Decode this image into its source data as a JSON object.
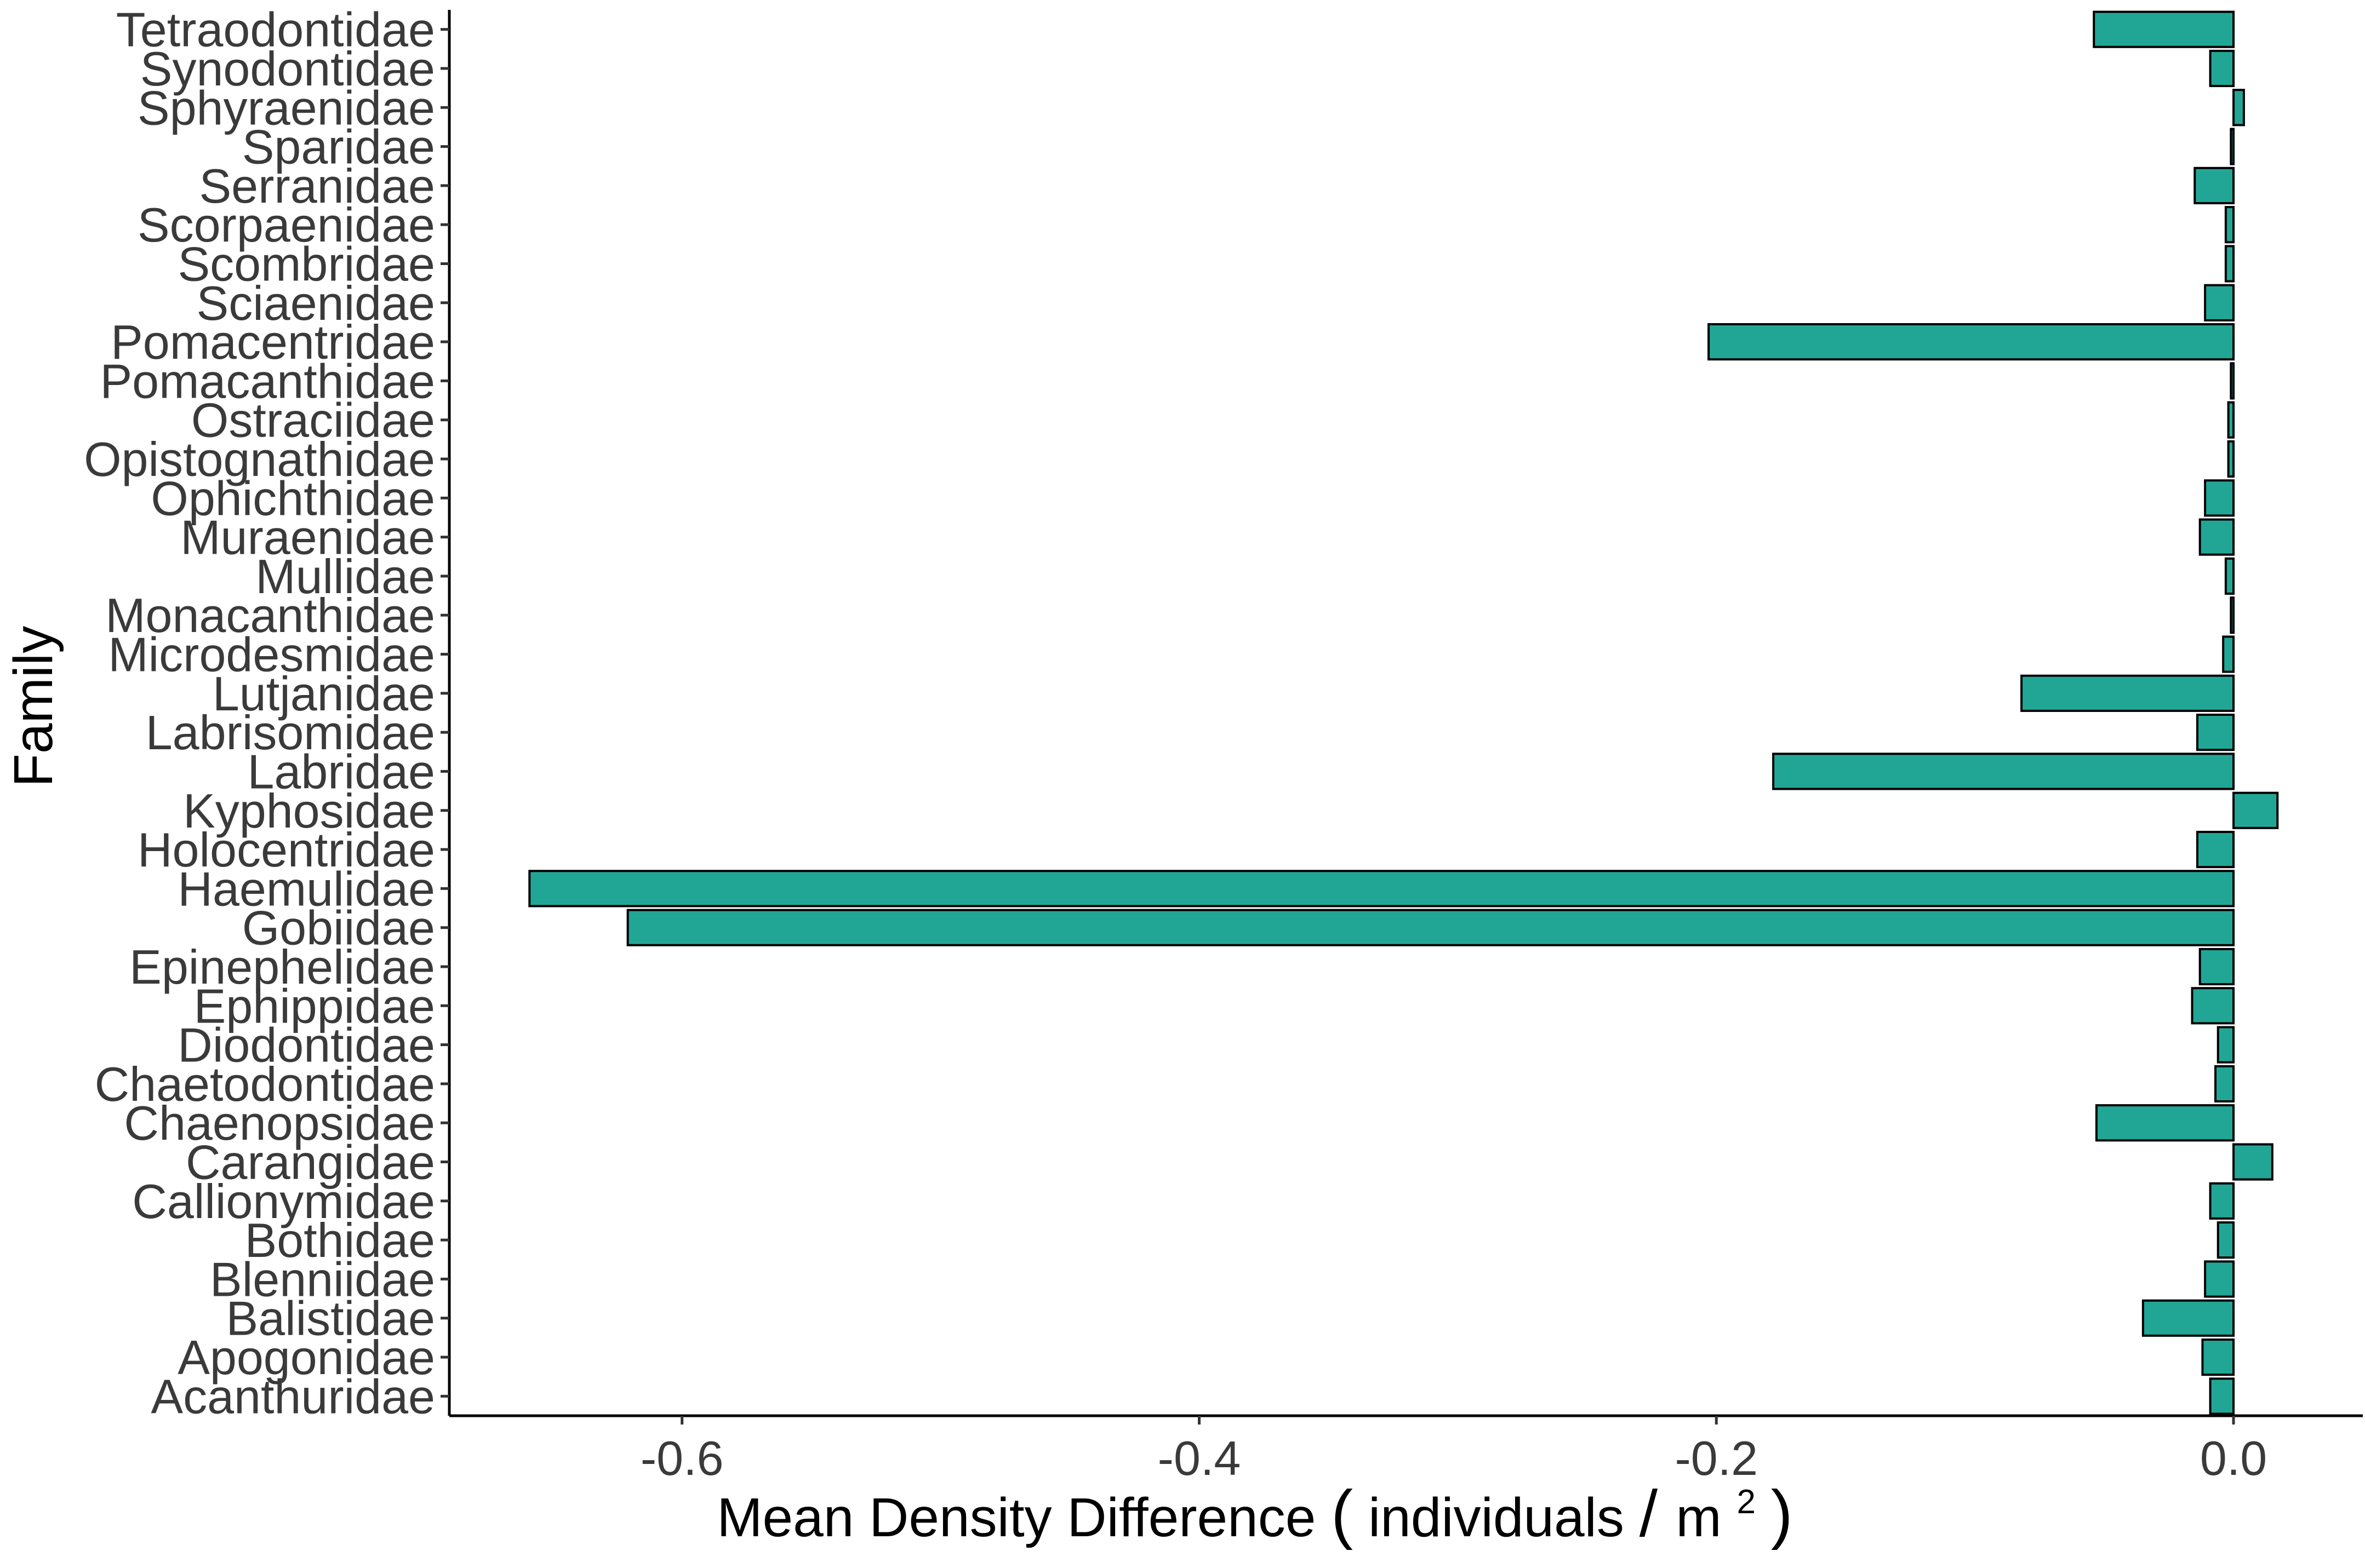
{
  "chart_data": {
    "type": "bar",
    "orientation": "horizontal",
    "title": "",
    "xlabel": "Mean Density Difference",
    "xlabel_unit_prefix": "individuals",
    "xlabel_unit_base": "m",
    "xlabel_unit_exponent": "2",
    "ylabel": "Family",
    "xlim": [
      -0.69,
      0.05
    ],
    "x_ticks": [
      -0.6,
      -0.4,
      -0.2,
      0.0
    ],
    "x_tick_labels": [
      "-0.6",
      "-0.4",
      "-0.2",
      "0.0"
    ],
    "grid": false,
    "legend": "none",
    "bar_color": "#21a696",
    "bar_edge_color": "#000000",
    "categories": [
      "Acanthuridae",
      "Apogonidae",
      "Balistidae",
      "Blenniidae",
      "Bothidae",
      "Callionymidae",
      "Carangidae",
      "Chaenopsidae",
      "Chaetodontidae",
      "Diodontidae",
      "Ephippidae",
      "Epinephelidae",
      "Gobiidae",
      "Haemulidae",
      "Holocentridae",
      "Kyphosidae",
      "Labridae",
      "Labrisomidae",
      "Lutjanidae",
      "Microdesmidae",
      "Monacanthidae",
      "Mullidae",
      "Muraenidae",
      "Ophichthidae",
      "Opistognathidae",
      "Ostraciidae",
      "Pomacanthidae",
      "Pomacentridae",
      "Sciaenidae",
      "Scombridae",
      "Scorpaenidae",
      "Serranidae",
      "Sparidae",
      "Sphyraenidae",
      "Synodontidae",
      "Tetraodontidae"
    ],
    "values": [
      -0.009,
      -0.012,
      -0.035,
      -0.011,
      -0.006,
      -0.009,
      0.015,
      -0.053,
      -0.007,
      -0.006,
      -0.016,
      -0.013,
      -0.621,
      -0.659,
      -0.014,
      0.017,
      -0.178,
      -0.014,
      -0.082,
      -0.004,
      -0.001,
      -0.003,
      -0.013,
      -0.011,
      -0.002,
      -0.002,
      -0.001,
      -0.203,
      -0.011,
      -0.003,
      -0.003,
      -0.015,
      -0.001,
      0.004,
      -0.009,
      -0.054
    ]
  }
}
